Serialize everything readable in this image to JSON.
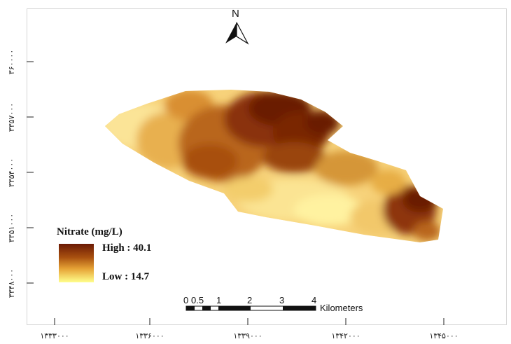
{
  "map": {
    "north_label": "N",
    "north_arrow_icon": "north-arrow-icon",
    "y_ticks": [
      {
        "label": "۳۶۰۰۰۰"
      },
      {
        "label": "۳۳۵۷۰۰۰"
      },
      {
        "label": "۳۳۵۴۰۰۰"
      },
      {
        "label": "۳۳۵۱۰۰۰"
      },
      {
        "label": "۳۳۴۸۰۰۰"
      }
    ],
    "x_ticks": [
      {
        "label": "۱۳۳۳۰۰۰"
      },
      {
        "label": "۱۳۳۶۰۰۰"
      },
      {
        "label": "۱۳۳۹۰۰۰"
      },
      {
        "label": "۱۳۴۲۰۰۰"
      },
      {
        "label": "۱۳۴۵۰۰۰"
      }
    ]
  },
  "legend": {
    "title": "Nitrate (mg/L)",
    "high_label": "High : 40.1",
    "low_label": "Low : 14.7",
    "high_value": 40.1,
    "low_value": 14.7,
    "colors": {
      "high": "#6b1a05",
      "mid_high": "#a8500f",
      "mid": "#e6a336",
      "low": "#ffff8c"
    }
  },
  "scalebar": {
    "labels": [
      "0",
      "0.5",
      "1",
      "2",
      "3",
      "4"
    ],
    "units": "Kilometers"
  }
}
